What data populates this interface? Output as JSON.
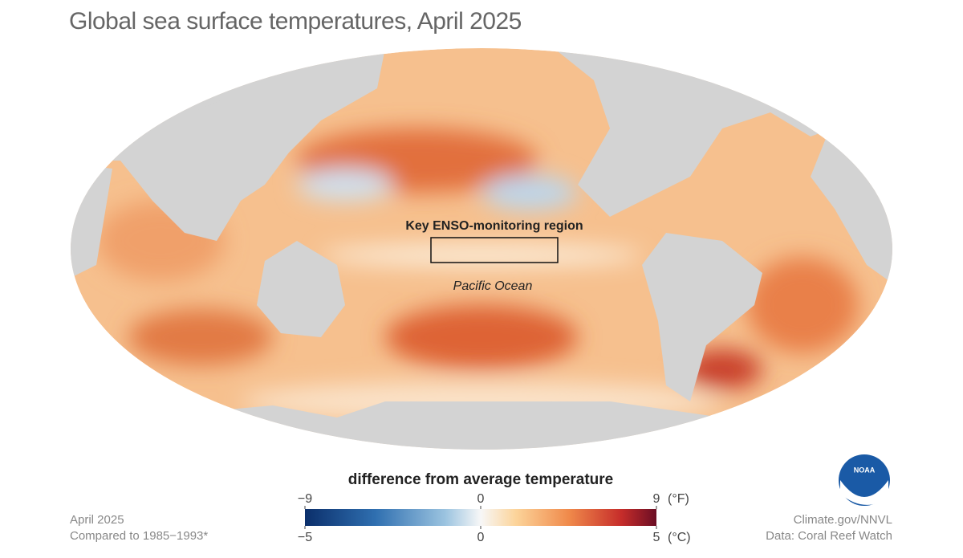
{
  "title": "Global sea surface temperatures, April 2025",
  "annotations": {
    "enso_region": "Key ENSO-monitoring region",
    "ocean": "Pacific Ocean"
  },
  "legend": {
    "title": "difference from average temperature",
    "fahrenheit": {
      "unit": "(°F)",
      "ticks": [
        {
          "value": -9,
          "label": "−9"
        },
        0,
        9
      ]
    },
    "celsius": {
      "unit": "(°C)",
      "ticks": [
        {
          "value": -5,
          "label": "−5"
        },
        0,
        5
      ]
    }
  },
  "footer": {
    "left": [
      "April 2025",
      "Compared to 1985−1993*"
    ],
    "right": [
      "Climate.gov/NNVL",
      "Data: Coral Reef Watch"
    ]
  },
  "logo": "NOAA"
}
